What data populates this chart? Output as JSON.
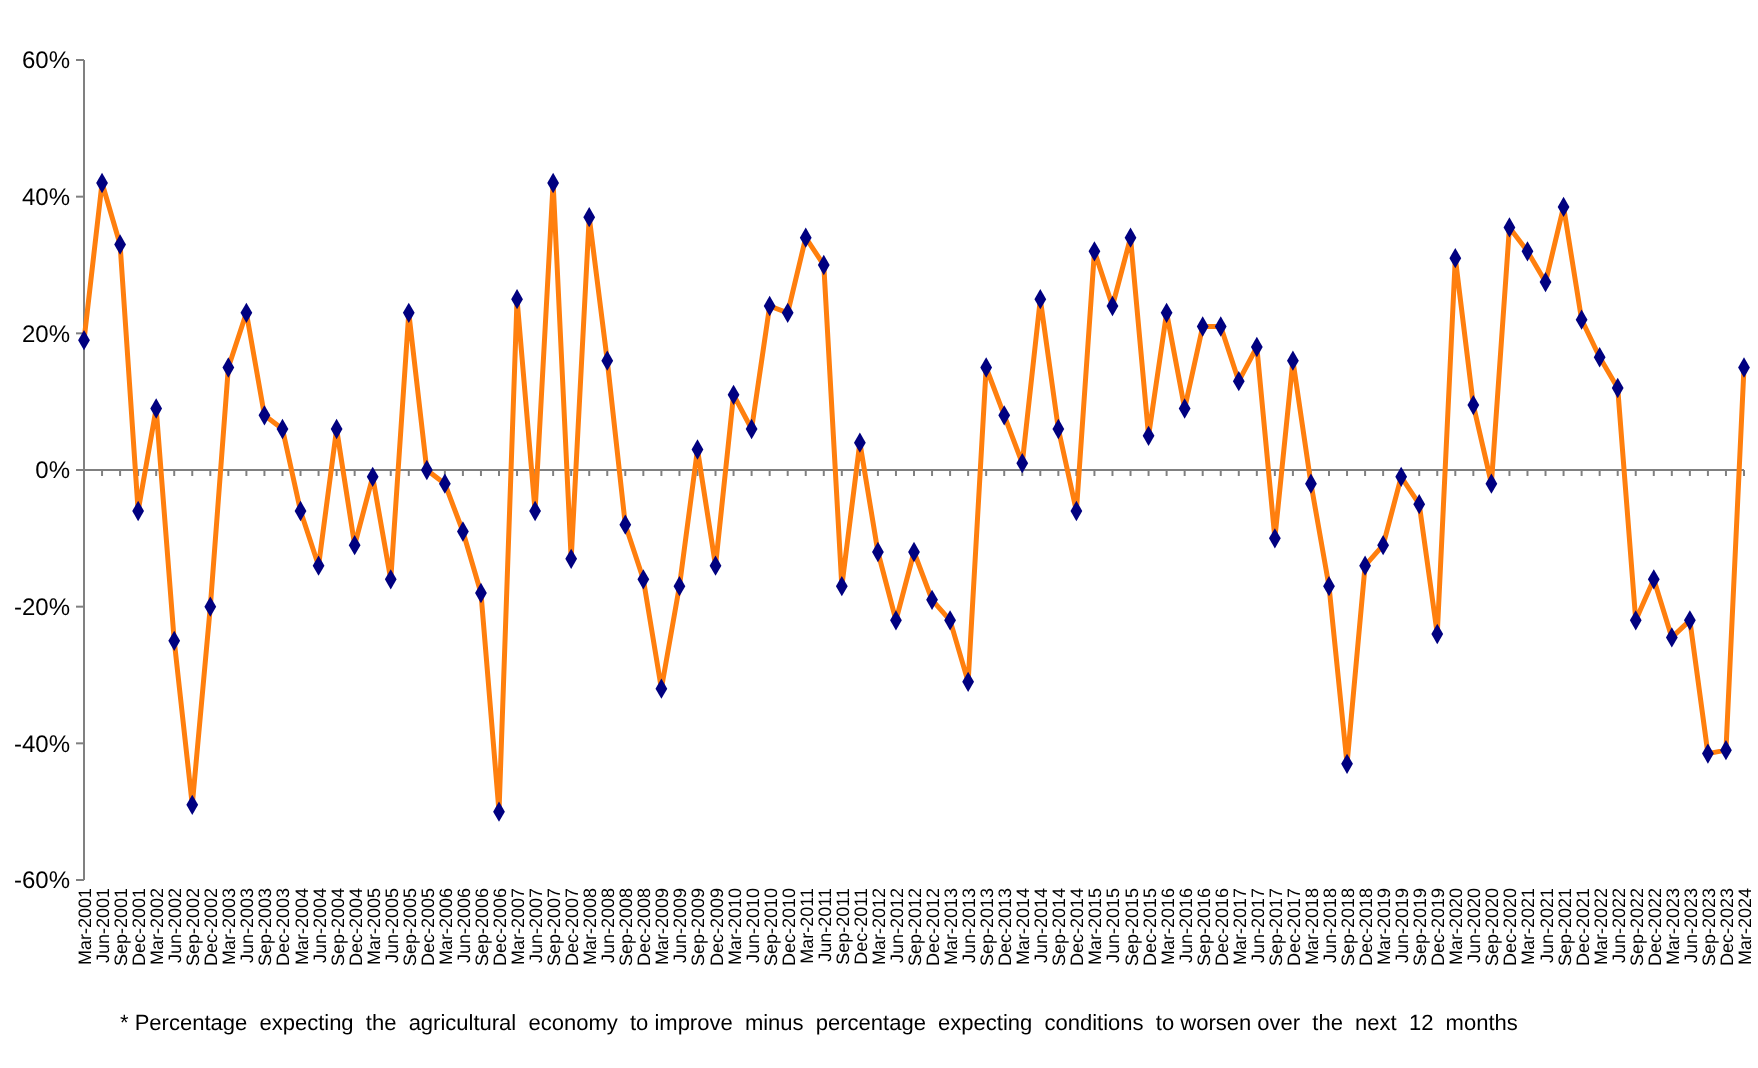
{
  "chart_data": {
    "type": "line",
    "categories": [
      "Mar-2001",
      "Jun-2001",
      "Sep-2001",
      "Dec-2001",
      "Mar-2002",
      "Jun-2002",
      "Sep-2002",
      "Dec-2002",
      "Mar-2003",
      "Jun-2003",
      "Sep-2003",
      "Dec-2003",
      "Mar-2004",
      "Jun-2004",
      "Sep-2004",
      "Dec-2004",
      "Mar-2005",
      "Jun-2005",
      "Sep-2005",
      "Dec-2005",
      "Mar-2006",
      "Jun-2006",
      "Sep-2006",
      "Dec-2006",
      "Mar-2007",
      "Jun-2007",
      "Sep-2007",
      "Dec-2007",
      "Mar-2008",
      "Jun-2008",
      "Sep-2008",
      "Dec-2008",
      "Mar-2009",
      "Jun-2009",
      "Sep-2009",
      "Dec-2009",
      "Mar-2010",
      "Jun-2010",
      "Sep-2010",
      "Dec-2010",
      "Mar-2011",
      "Jun-2011",
      "Sep-2011",
      "Dec-2011",
      "Mar-2012",
      "Jun-2012",
      "Sep-2012",
      "Dec-2012",
      "Mar-2013",
      "Jun-2013",
      "Sep-2013",
      "Dec-2013",
      "Mar-2014",
      "Jun-2014",
      "Sep-2014",
      "Dec-2014",
      "Mar-2015",
      "Jun-2015",
      "Sep-2015",
      "Dec-2015",
      "Mar-2016",
      "Jun-2016",
      "Sep-2016",
      "Dec-2016",
      "Mar-2017",
      "Jun-2017",
      "Sep-2017",
      "Dec-2017",
      "Mar-2018",
      "Jun-2018",
      "Sep-2018",
      "Dec-2018",
      "Mar-2019",
      "Jun-2019",
      "Sep-2019",
      "Dec-2019",
      "Mar-2020",
      "Jun-2020",
      "Sep-2020",
      "Dec-2020",
      "Mar-2021",
      "Jun-2021",
      "Sep-2021",
      "Dec-2021",
      "Mar-2022",
      "Jun-2022",
      "Sep-2022",
      "Dec-2022",
      "Mar-2023",
      "Jun-2023",
      "Sep-2023",
      "Dec-2023",
      "Mar-2024"
    ],
    "series": [
      {
        "color": "#ff7f0e",
        "values": [
          19,
          42,
          33,
          -6,
          9,
          -25,
          -49,
          -20,
          15,
          23,
          8,
          6,
          -6,
          -14,
          6,
          -11,
          -1,
          -16,
          23,
          0,
          -2,
          -9,
          -18,
          -50,
          25,
          -6,
          42,
          -13,
          37,
          16,
          -8,
          -16,
          -32,
          -17,
          3,
          -14,
          11,
          6,
          24,
          23,
          34,
          30,
          -17,
          4,
          -12,
          -22,
          -12,
          -19,
          -22,
          -31,
          15,
          8,
          1,
          25,
          6,
          -6,
          32,
          24,
          34,
          5,
          23,
          9,
          21,
          21,
          13,
          18,
          -10,
          16,
          -2,
          -17,
          -43,
          -14,
          -11,
          -1,
          -5,
          -24,
          31,
          9.5,
          -2,
          35.5,
          32,
          27.5,
          38.5,
          22,
          16.5,
          12,
          -22,
          -16,
          -24.5,
          -22,
          -41.5,
          -41,
          15
        ]
      }
    ],
    "ylim": [
      -60,
      60
    ],
    "yticks": [
      {
        "value": -60,
        "label": "-60%"
      },
      {
        "value": -40,
        "label": "-40%"
      },
      {
        "value": -20,
        "label": "-20%"
      },
      {
        "value": 0,
        "label": "0%"
      },
      {
        "value": 20,
        "label": "20%"
      },
      {
        "value": 40,
        "label": "40%"
      },
      {
        "value": 60,
        "label": "60%"
      }
    ],
    "marker": "diamond",
    "line_style": "solid",
    "annotations": [
      "* Percentage  expecting  the  agricultural  economy  to improve  minus  percentage  expecting  conditions  to worsen over  the  next  12  months"
    ]
  }
}
